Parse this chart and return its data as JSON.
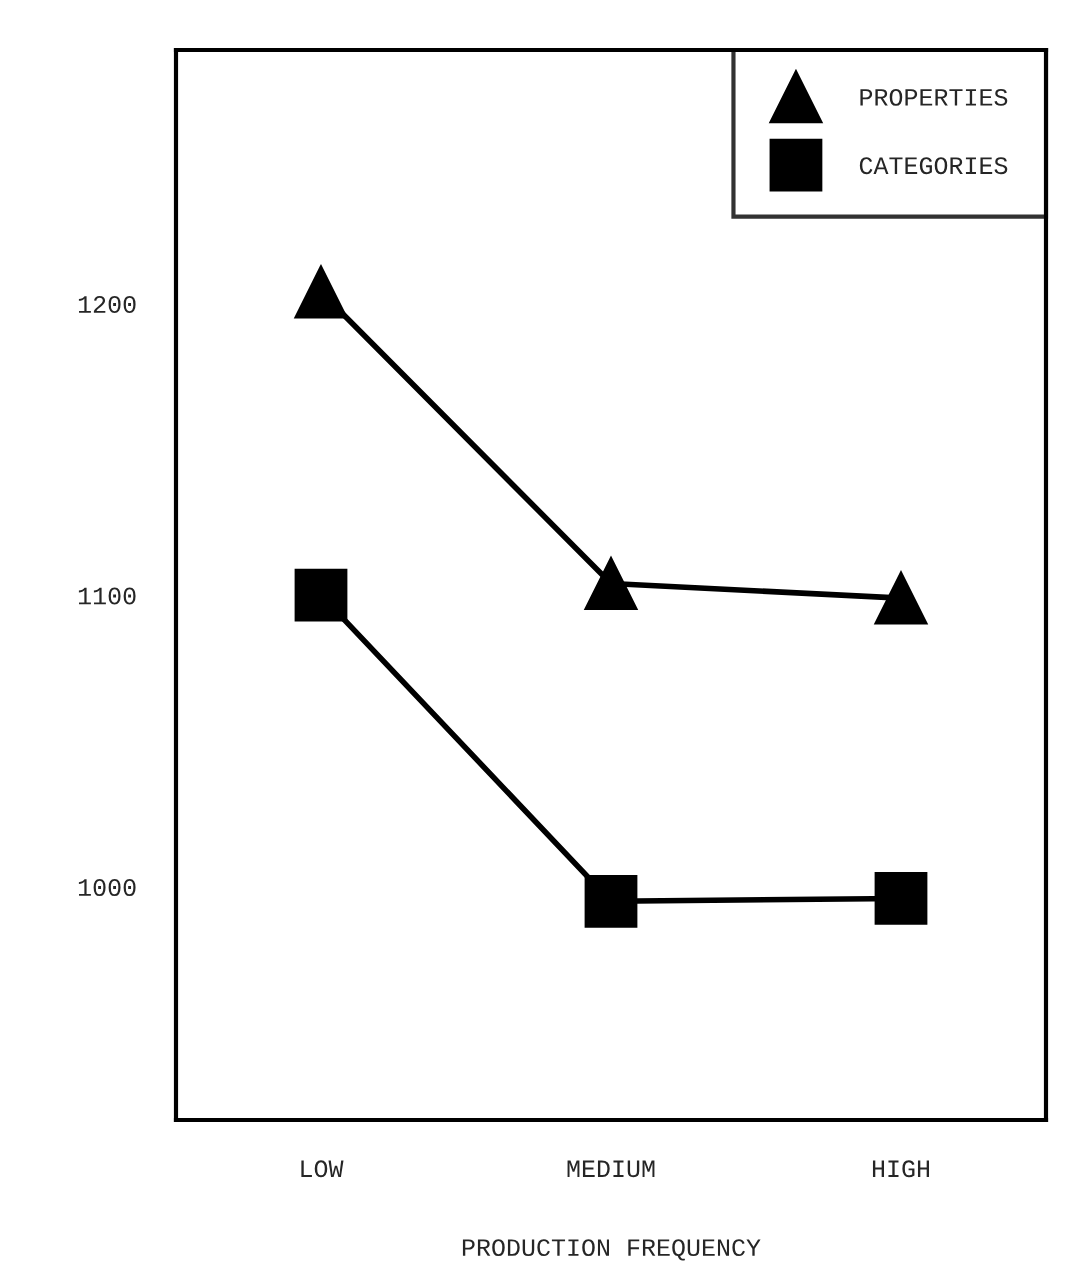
{
  "chart_data": {
    "type": "line",
    "xlabel": "PRODUCTION FREQUENCY",
    "categories": [
      "LOW",
      "MEDIUM",
      "HIGH"
    ],
    "series": [
      {
        "name": "PROPERTIES",
        "color": "#000000",
        "marker": "triangle",
        "values": [
          1204,
          1104,
          1099
        ]
      },
      {
        "name": "CATEGORIES",
        "color": "#000000",
        "marker": "square",
        "values": [
          1100,
          995,
          996
        ]
      }
    ],
    "ylim": [
      920,
      1287
    ],
    "yticks": [
      1000,
      1100,
      1200
    ],
    "grid": false,
    "legend": "top right",
    "line_style": "solid"
  }
}
